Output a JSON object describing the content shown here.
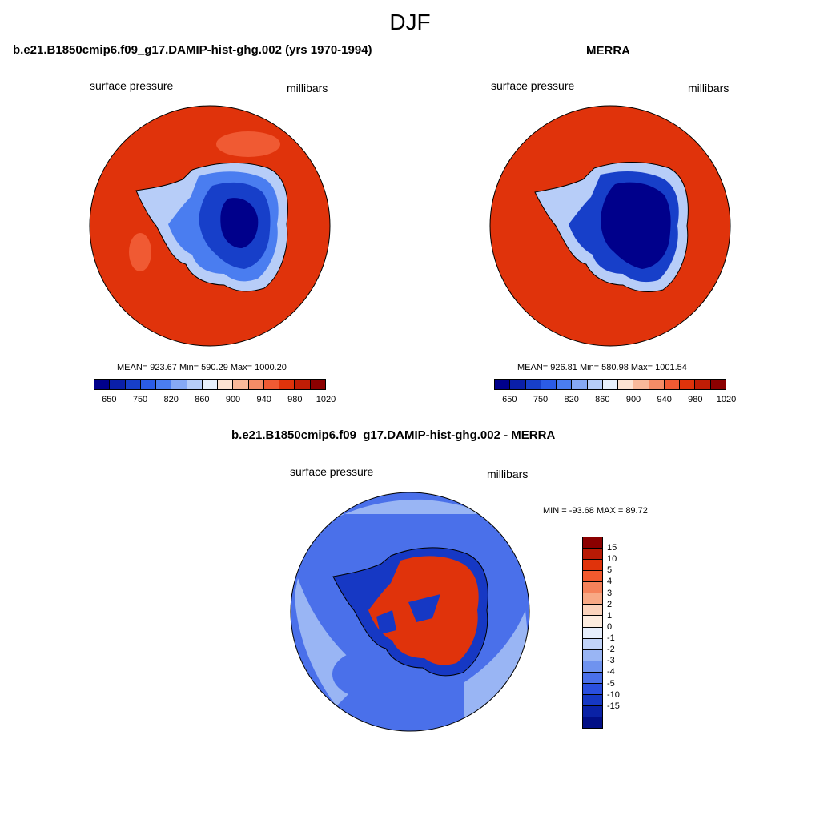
{
  "title": "DJF",
  "panels": [
    {
      "title": "b.e21.B1850cmip6.f09_g17.DAMIP-hist-ghg.002 (yrs 1970-1994)",
      "left_label": "surface pressure",
      "right_label": "millibars",
      "stats": "MEAN= 923.67  Min= 590.29  Max= 1000.20"
    },
    {
      "title": "MERRA",
      "left_label": "surface pressure",
      "right_label": "millibars",
      "stats": "MEAN= 926.81  Min= 580.98  Max= 1001.54"
    },
    {
      "title": "b.e21.B1850cmip6.f09_g17.DAMIP-hist-ghg.002 - MERRA",
      "left_label": "surface pressure",
      "right_label": "millibars",
      "stats": "MIN = -93.68 MAX =  89.72"
    }
  ],
  "abs_colorbar": {
    "colors": [
      "#00008b",
      "#0a1fa8",
      "#173fc9",
      "#2b5ce6",
      "#4a7df0",
      "#86a9f5",
      "#b7cdf8",
      "#e8f0fc",
      "#fde3d2",
      "#f9b99a",
      "#f58c66",
      "#f05a33",
      "#e0330b",
      "#c01d05",
      "#8b0000"
    ],
    "tick_labels": [
      "650",
      "750",
      "820",
      "860",
      "900",
      "940",
      "980",
      "1020"
    ]
  },
  "diff_colorbar": {
    "colors": [
      "#8b0000",
      "#b81a05",
      "#e0330b",
      "#f25a2e",
      "#f5825a",
      "#f8a985",
      "#fbd3bc",
      "#fdecdf",
      "#e6eefc",
      "#c1d3f8",
      "#99b5f4",
      "#6f93ef",
      "#4a70ea",
      "#2a4fdf",
      "#1638c4",
      "#0a22a6",
      "#020f86"
    ],
    "tick_labels": [
      "15",
      "10",
      "5",
      "4",
      "3",
      "2",
      "1",
      "0",
      "-1",
      "-2",
      "-3",
      "-4",
      "-5",
      "-10",
      "-15"
    ]
  },
  "map_colors": {
    "ocean_abs": "#e0330b",
    "ocean_abs_light": "#f05a33",
    "plateau_dark": "#00008b",
    "plateau_mid": "#173fc9",
    "plateau_light": "#4a7df0",
    "coast_light": "#b7cdf8",
    "diff_ocean": "#4a70ea",
    "diff_ocean_light": "#99b5f4",
    "diff_land_red": "#e0330b",
    "diff_land_blue": "#1638c4"
  }
}
